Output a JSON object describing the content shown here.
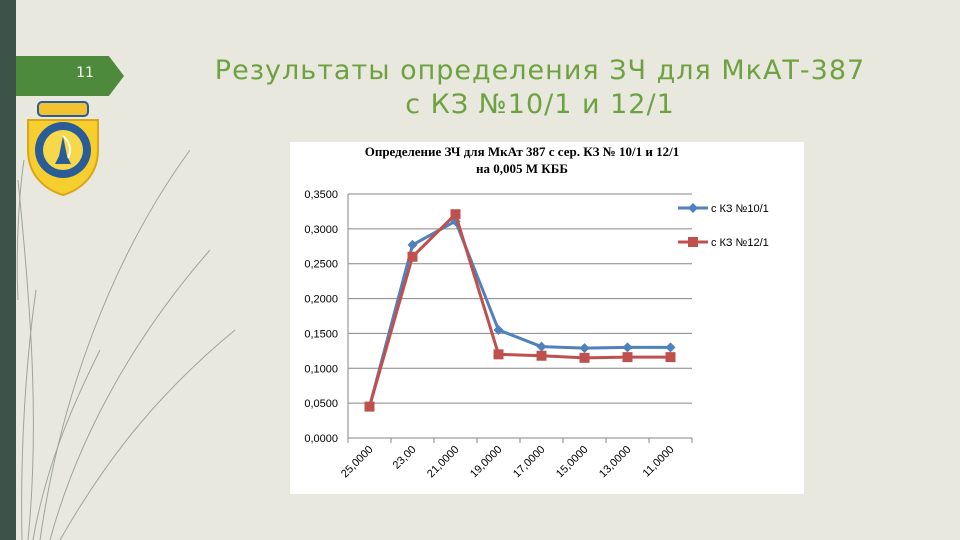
{
  "slide": {
    "number": "11",
    "title_line1": "Результаты определения ЗЧ для МкАТ-387",
    "title_line2": "с КЗ №10/1 и 12/1"
  },
  "colors": {
    "title": "#6ea13f",
    "series1": "#4f81bd",
    "series2": "#c0504d",
    "left_bar": "#3b5348",
    "tab": "#4e8a3b",
    "background": "#e9e8df"
  },
  "icons": {
    "logo": "emblem-logo-icon"
  },
  "chart_data": {
    "type": "line",
    "title_line1": "Определение ЗЧ для МкАт 387 с сер. КЗ № 10/1 и 12/1",
    "title_line2": "на 0,005 М КББ",
    "categories": [
      "25,0000",
      "23,00",
      "21,0000",
      "19,0000",
      "17,0000",
      "15,0000",
      "13,0000",
      "11,0000"
    ],
    "series": [
      {
        "name": "с КЗ №10/1",
        "marker": "diamond",
        "values": [
          0.045,
          0.277,
          0.311,
          0.155,
          0.131,
          0.129,
          0.13,
          0.13
        ]
      },
      {
        "name": "с КЗ №12/1",
        "marker": "square",
        "values": [
          0.045,
          0.26,
          0.321,
          0.12,
          0.118,
          0.115,
          0.116,
          0.116
        ]
      }
    ],
    "y_ticks": [
      "0,3500",
      "0,3000",
      "0,2500",
      "0,2000",
      "0,1500",
      "0,1000",
      "0,0500",
      "0,0000"
    ],
    "ylim": [
      0,
      0.35
    ],
    "grid": true,
    "legend_position": "right"
  }
}
